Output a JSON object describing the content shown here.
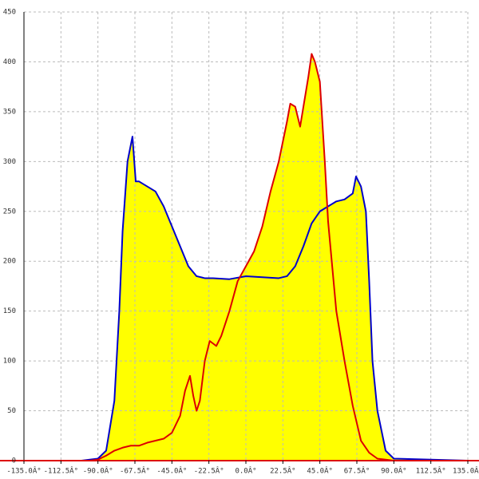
{
  "chart_data": {
    "type": "area",
    "fill": "#ffff00",
    "grid": true,
    "xlim": [
      -135,
      135
    ],
    "xticks": [
      {
        "value": -135,
        "label": "-135.0Â°"
      },
      {
        "value": -112.5,
        "label": "-112.5Â°"
      },
      {
        "value": -90,
        "label": "-90.0Â°"
      },
      {
        "value": -67.5,
        "label": "-67.5Â°"
      },
      {
        "value": -45,
        "label": "-45.0Â°"
      },
      {
        "value": -22.5,
        "label": "-22.5Â°"
      },
      {
        "value": 0,
        "label": "0.0Â°"
      },
      {
        "value": 22.5,
        "label": "22.5Â°"
      },
      {
        "value": 45,
        "label": "45.0Â°"
      },
      {
        "value": 67.5,
        "label": "67.5Â°"
      },
      {
        "value": 90,
        "label": "90.0Â°"
      },
      {
        "value": 112.5,
        "label": "112.5Â°"
      },
      {
        "value": 135,
        "label": "135.0Â°"
      }
    ],
    "ylim": [
      0,
      450
    ],
    "yticks": [
      0,
      50,
      100,
      150,
      200,
      250,
      300,
      350,
      400,
      450
    ],
    "series": [
      {
        "color": "#0000cc",
        "x": [
          -135,
          -105,
          -100,
          -90,
          -85,
          -80,
          -77,
          -75,
          -72,
          -69,
          -67,
          -65,
          -60,
          -55,
          -50,
          -45,
          -40,
          -35,
          -30,
          -25,
          -20,
          -10,
          0,
          10,
          20,
          25,
          30,
          35,
          40,
          45,
          50,
          55,
          60,
          65,
          67,
          70,
          73,
          75,
          77,
          80,
          85,
          90,
          135
        ],
        "values": [
          0,
          0,
          0,
          2,
          10,
          60,
          150,
          230,
          300,
          325,
          280,
          280,
          275,
          270,
          255,
          235,
          215,
          195,
          185,
          183,
          183,
          182,
          185,
          184,
          183,
          185,
          195,
          215,
          238,
          250,
          255,
          260,
          262,
          268,
          285,
          275,
          250,
          180,
          100,
          50,
          10,
          2,
          0
        ]
      },
      {
        "color": "#dd0000",
        "x": [
          -135,
          -95,
          -90,
          -85,
          -80,
          -75,
          -70,
          -65,
          -60,
          -55,
          -50,
          -45,
          -40,
          -37,
          -34,
          -32,
          -30,
          -28,
          -25,
          -22,
          -18,
          -15,
          -10,
          -5,
          0,
          5,
          10,
          15,
          20,
          25,
          27,
          30,
          33,
          35,
          38,
          40,
          42,
          45,
          48,
          50,
          55,
          60,
          65,
          70,
          75,
          80,
          85,
          90,
          135
        ],
        "values": [
          0,
          0,
          1,
          5,
          10,
          13,
          15,
          15,
          18,
          20,
          22,
          28,
          45,
          70,
          85,
          65,
          50,
          60,
          100,
          120,
          115,
          125,
          150,
          180,
          195,
          210,
          235,
          270,
          300,
          340,
          358,
          355,
          335,
          355,
          385,
          408,
          400,
          380,
          300,
          240,
          150,
          100,
          55,
          20,
          8,
          2,
          1,
          0,
          0
        ]
      }
    ]
  }
}
